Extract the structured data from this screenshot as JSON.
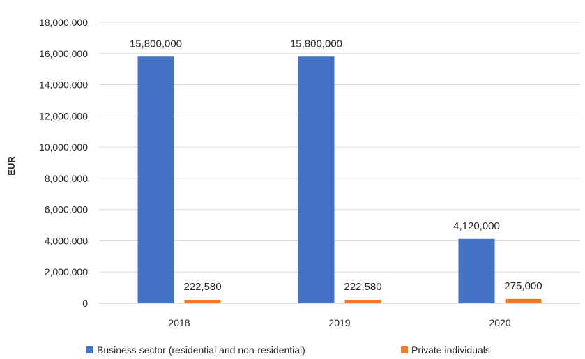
{
  "chart_data": {
    "type": "bar",
    "categories": [
      "2018",
      "2019",
      "2020"
    ],
    "series": [
      {
        "name": "Business sector (residential and non-residential)",
        "color": "#4472C4",
        "values": [
          15800000,
          15800000,
          4120000
        ],
        "labels": [
          "15,800,000",
          "15,800,000",
          "4,120,000"
        ]
      },
      {
        "name": "Private individuals",
        "color": "#ED7D31",
        "values": [
          222580,
          222580,
          275000
        ],
        "labels": [
          "222,580",
          "222,580",
          "275,000"
        ]
      }
    ],
    "ylabel": "EUR",
    "ylim": [
      0,
      18000000
    ],
    "yticks": [
      0,
      2000000,
      4000000,
      6000000,
      8000000,
      10000000,
      12000000,
      14000000,
      16000000,
      18000000
    ],
    "ytick_labels": [
      "0",
      "2,000,000",
      "4,000,000",
      "6,000,000",
      "8,000,000",
      "10,000,000",
      "12,000,000",
      "14,000,000",
      "16,000,000",
      "18,000,000"
    ],
    "grid": true,
    "legend": "bottom"
  }
}
